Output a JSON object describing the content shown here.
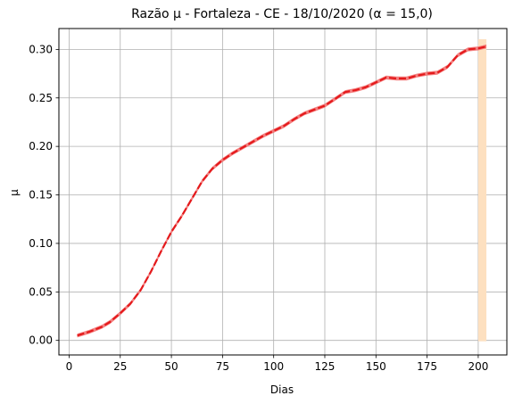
{
  "chart_data": {
    "type": "line",
    "title": "Razão μ - Fortaleza - CE - 18/10/2020 (α = 15,0)",
    "xlabel": "Dias",
    "ylabel": "μ",
    "xlim": [
      -5,
      214
    ],
    "ylim": [
      -0.015,
      0.3215
    ],
    "grid": true,
    "legend": "none",
    "xticks": [
      0,
      25,
      50,
      75,
      100,
      125,
      150,
      175,
      200
    ],
    "xtick_labels": [
      "0",
      "25",
      "50",
      "75",
      "100",
      "125",
      "150",
      "175",
      "200"
    ],
    "yticks": [
      0.0,
      0.05,
      0.1,
      0.15,
      0.2,
      0.25,
      0.3
    ],
    "ytick_labels": [
      "0.00",
      "0.05",
      "0.10",
      "0.15",
      "0.20",
      "0.25",
      "0.30"
    ],
    "highlight_span": {
      "x_start": 200,
      "x_end": 204,
      "color": "#fde0c0"
    },
    "colors": {
      "line": "#e41a1c",
      "band": "#f26b6b"
    },
    "series": [
      {
        "x": [
          4,
          10,
          16,
          20,
          25,
          30,
          35,
          40,
          45,
          50,
          55,
          60,
          65,
          70,
          75,
          80,
          85,
          90,
          95,
          100,
          105,
          110,
          115,
          120,
          125,
          130,
          135,
          140,
          145,
          150,
          155,
          160,
          165,
          170,
          175,
          180,
          185,
          190,
          195,
          200,
          204
        ],
        "y": [
          0.005,
          0.009,
          0.014,
          0.019,
          0.028,
          0.038,
          0.052,
          0.071,
          0.092,
          0.112,
          0.128,
          0.146,
          0.164,
          0.177,
          0.186,
          0.193,
          0.199,
          0.205,
          0.211,
          0.216,
          0.221,
          0.228,
          0.234,
          0.238,
          0.242,
          0.249,
          0.256,
          0.258,
          0.261,
          0.266,
          0.271,
          0.27,
          0.27,
          0.273,
          0.275,
          0.276,
          0.282,
          0.294,
          0.3,
          0.301,
          0.303
        ],
        "band": 0.002
      }
    ]
  }
}
